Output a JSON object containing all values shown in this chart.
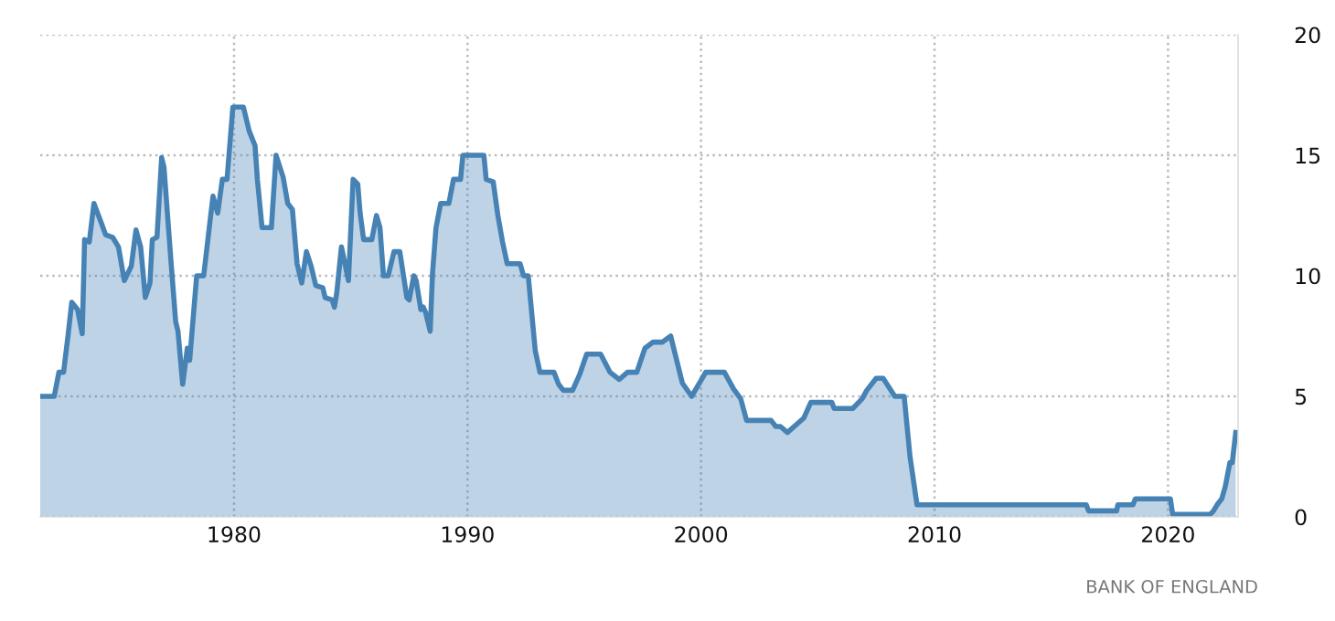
{
  "chart_data": {
    "type": "area",
    "annotations": [
      "BANK OF ENGLAND"
    ],
    "x": [
      1971.7,
      1972.3,
      1972.5,
      1972.7,
      1972.9,
      1973.05,
      1973.3,
      1973.5,
      1973.6,
      1973.8,
      1974.0,
      1974.35,
      1974.5,
      1974.8,
      1975.05,
      1975.3,
      1975.6,
      1975.8,
      1976.0,
      1976.2,
      1976.4,
      1976.5,
      1976.7,
      1976.9,
      1977.0,
      1977.3,
      1977.5,
      1977.6,
      1977.8,
      1978.0,
      1978.1,
      1978.4,
      1978.7,
      1979.0,
      1979.1,
      1979.3,
      1979.5,
      1979.7,
      1979.95,
      1980.4,
      1980.65,
      1980.9,
      1981.0,
      1981.2,
      1981.6,
      1981.8,
      1982.1,
      1982.3,
      1982.5,
      1982.7,
      1982.9,
      1983.1,
      1983.3,
      1983.5,
      1983.8,
      1983.9,
      1984.2,
      1984.3,
      1984.4,
      1984.6,
      1984.75,
      1984.9,
      1985.1,
      1985.3,
      1985.4,
      1985.55,
      1985.9,
      1986.1,
      1986.25,
      1986.4,
      1986.6,
      1986.85,
      1987.1,
      1987.4,
      1987.5,
      1987.7,
      1987.8,
      1988.0,
      1988.1,
      1988.2,
      1988.4,
      1988.5,
      1988.65,
      1988.85,
      1989.2,
      1989.4,
      1989.7,
      1989.8,
      1990.7,
      1990.8,
      1991.1,
      1991.3,
      1991.5,
      1991.7,
      1992.25,
      1992.4,
      1992.6,
      1992.9,
      1993.1,
      1993.7,
      1993.9,
      1994.1,
      1994.5,
      1994.8,
      1995.1,
      1995.7,
      1996.1,
      1996.5,
      1996.85,
      1997.25,
      1997.6,
      1997.95,
      1998.35,
      1998.7,
      1999.2,
      1999.6,
      2000.2,
      2001.0,
      2001.4,
      2001.7,
      2001.95,
      2003.0,
      2003.2,
      2003.4,
      2003.7,
      2004.4,
      2004.7,
      2005.6,
      2005.7,
      2006.5,
      2006.9,
      2007.1,
      2007.5,
      2007.8,
      2008.3,
      2008.7,
      2008.95,
      2009.25,
      2016.5,
      2016.6,
      2017.8,
      2017.85,
      2018.5,
      2018.6,
      2020.1,
      2020.2,
      2021.8,
      2021.95,
      2022.1,
      2022.3,
      2022.45,
      2022.65,
      2022.75,
      2022.9
    ],
    "series": [
      {
        "color": "#4682b4",
        "values": [
          5,
          5,
          6,
          6,
          7.6,
          8.9,
          8.6,
          7.6,
          11.5,
          11.4,
          13,
          12.1,
          11.7,
          11.6,
          11.2,
          9.8,
          10.4,
          11.9,
          11.2,
          9.1,
          9.7,
          11.5,
          11.6,
          14.9,
          14.5,
          10.6,
          8.1,
          7.7,
          5.5,
          7,
          6.5,
          10,
          10,
          12.5,
          13.3,
          12.6,
          14,
          14,
          17,
          17,
          16,
          15.4,
          14,
          12,
          12,
          15,
          14.1,
          13,
          12.75,
          10.5,
          9.7,
          11,
          10.4,
          9.6,
          9.5,
          9.1,
          9,
          8.7,
          9.3,
          11.2,
          10.5,
          9.8,
          14,
          13.8,
          12.6,
          11.5,
          11.5,
          12.5,
          12,
          10,
          10,
          11,
          11,
          9.1,
          9,
          10,
          9.8,
          8.6,
          8.7,
          8.5,
          7.7,
          10.1,
          12,
          13,
          13,
          14,
          14,
          15,
          15,
          14,
          13.9,
          12.5,
          11.4,
          10.5,
          10.5,
          10,
          10,
          6.9,
          6,
          6,
          5.5,
          5.25,
          5.25,
          5.9,
          6.75,
          6.75,
          6,
          5.7,
          6,
          6,
          7,
          7.25,
          7.25,
          7.5,
          5.55,
          5,
          6,
          6,
          5.3,
          4.9,
          4,
          4,
          3.75,
          3.75,
          3.5,
          4.1,
          4.75,
          4.75,
          4.5,
          4.5,
          4.9,
          5.25,
          5.75,
          5.75,
          5,
          5,
          2.5,
          0.5,
          0.5,
          0.25,
          0.25,
          0.5,
          0.5,
          0.75,
          0.75,
          0.1,
          0.1,
          0.25,
          0.5,
          0.75,
          1.25,
          2.25,
          2.25,
          3.5
        ]
      }
    ],
    "xlim": [
      1971.7,
      2023.0
    ],
    "xticks": [
      1980,
      1990,
      2000,
      2010,
      2020
    ],
    "ylim": [
      0,
      20
    ],
    "yticks": [
      0,
      5,
      10,
      15,
      20
    ],
    "grid": true,
    "legend": false
  }
}
